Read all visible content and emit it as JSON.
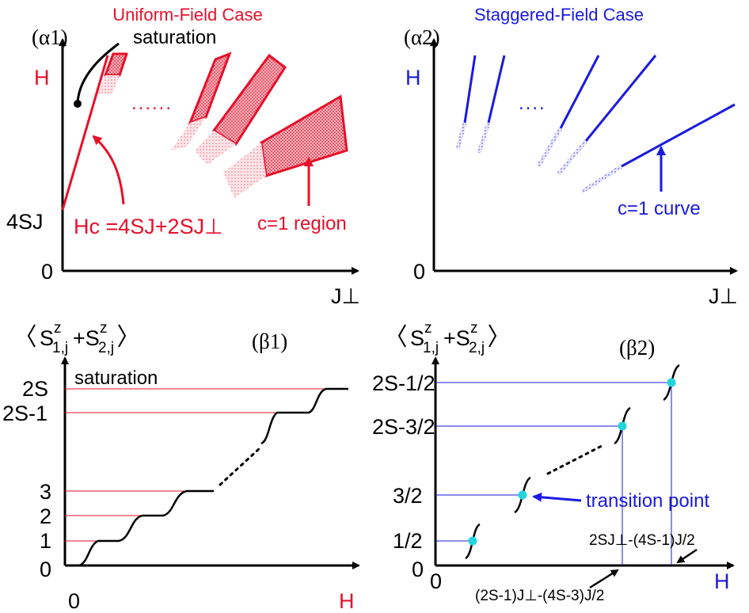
{
  "colors": {
    "uniform": "#e8102a",
    "staggered": "#1a1ae0",
    "axis": "#000000",
    "point": "#22d4e0"
  },
  "panel_a1": {
    "title": "Uniform-Field Case",
    "tag": "(α1)",
    "y_axis": "H",
    "x_axis": "J⊥",
    "y_tick": "4SJ",
    "origin": "0",
    "saturation": "saturation",
    "ellipsis": "......",
    "hc_formula": "Hc =4SJ+2SJ⊥",
    "region_label": "c=1 region"
  },
  "panel_a2": {
    "title": "Staggered-Field Case",
    "tag": "(α2)",
    "y_axis": "H",
    "x_axis": "J⊥",
    "origin": "0",
    "ellipsis": "....",
    "curve_label": "c=1 curve"
  },
  "panel_b1": {
    "tag": "(β1)",
    "y_axis": "〈S z 1,j + S z 2,j〉",
    "x_axis": "H",
    "origin_y": "0",
    "origin_x": "0",
    "saturation": "saturation",
    "levels": [
      "2S",
      "2S-1",
      "3",
      "2",
      "1"
    ]
  },
  "panel_b2": {
    "tag": "(β2)",
    "y_axis": "〈S z 1,j + S z 2,j〉",
    "x_axis": "H",
    "origin_y": "0",
    "origin_x": "0",
    "levels": [
      "2S-1/2",
      "2S-3/2",
      "3/2",
      "1/2"
    ],
    "transition_label": "transition point",
    "annotation_right": "2SJ⊥-(4S-1)J/2",
    "annotation_bottom": "(2S-1)J⊥-(4S-3)J/2"
  }
}
